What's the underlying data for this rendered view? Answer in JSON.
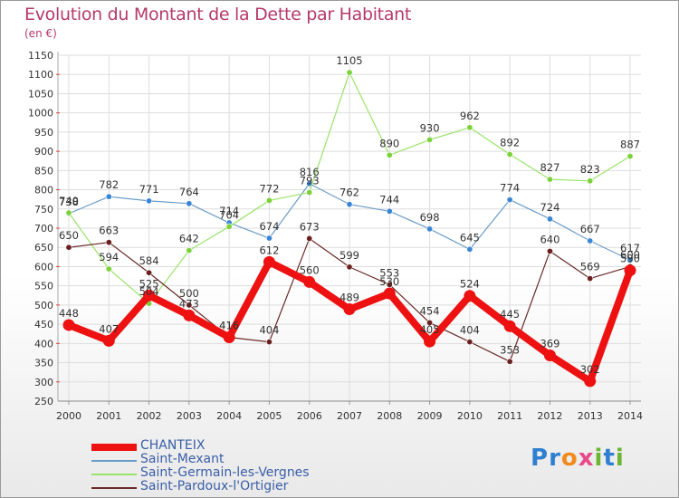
{
  "title": "Evolution du Montant de la Dette par Habitant",
  "unit": "(en €)",
  "logo": {
    "text": "Proxiti",
    "letters": [
      "P",
      "r",
      "o",
      "x",
      "i",
      "t",
      "i"
    ],
    "colors": [
      "#2f7fd1",
      "#2f7fd1",
      "#f08a1c",
      "#e84a8a",
      "#6bb531",
      "#2f7fd1",
      "#6bb531"
    ]
  },
  "chart_data": {
    "type": "line",
    "title": "Evolution du Montant de la Dette par Habitant",
    "ylabel": "(en €)",
    "xlabel": "",
    "x": [
      "2000",
      "2001",
      "2002",
      "2003",
      "2004",
      "2005",
      "2006",
      "2007",
      "2008",
      "2009",
      "2010",
      "2011",
      "2012",
      "2013",
      "2014"
    ],
    "ylim": [
      250,
      1150
    ],
    "yticks": [
      250,
      300,
      350,
      400,
      450,
      500,
      550,
      600,
      650,
      700,
      750,
      800,
      850,
      900,
      950,
      1000,
      1050,
      1100,
      1150
    ],
    "grid": true,
    "legend_position": "bottom-left",
    "series": [
      {
        "name": "CHANTEIX",
        "color": "#ee1111",
        "marker": "#ee1111",
        "width": 8,
        "values": [
          448,
          407,
          525,
          473,
          416,
          612,
          560,
          489,
          530,
          405,
          524,
          445,
          369,
          302,
          590
        ]
      },
      {
        "name": "Saint-Mexant",
        "color": "#6b9cc8",
        "marker": "#3a86d6",
        "width": 1.2,
        "values": [
          738,
          782,
          771,
          764,
          714,
          674,
          816,
          762,
          744,
          698,
          645,
          774,
          724,
          667,
          617
        ]
      },
      {
        "name": "Saint-Germain-les-Vergnes",
        "color": "#9be36a",
        "marker": "#7cd23a",
        "width": 1.2,
        "values": [
          740,
          594,
          504,
          642,
          704,
          772,
          793,
          1105,
          890,
          930,
          962,
          892,
          827,
          823,
          887
        ]
      },
      {
        "name": "Saint-Pardoux-l'Ortigier",
        "color": "#6b2a2a",
        "marker": "#6b2020",
        "width": 1.2,
        "values": [
          650,
          663,
          584,
          500,
          416,
          404,
          673,
          599,
          553,
          454,
          404,
          353,
          640,
          569,
          600
        ]
      }
    ]
  }
}
